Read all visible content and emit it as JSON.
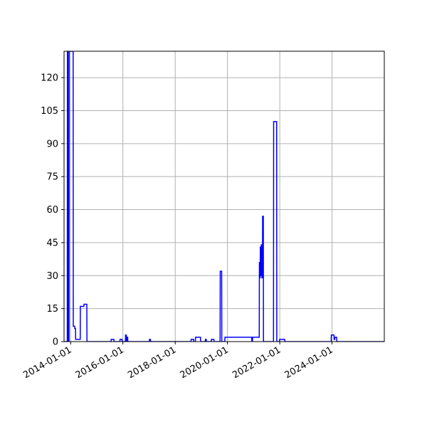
{
  "chart_data": {
    "type": "line",
    "title": "",
    "xlabel": "",
    "ylabel": "",
    "grid": true,
    "line_color": "#0000ff",
    "grid_color": "#b0b0b0",
    "x_type": "date",
    "xlim": [
      "2013-10-01",
      "2025-12-31"
    ],
    "ylim": [
      0,
      132
    ],
    "xticks": [
      "2014-01-01",
      "2016-01-01",
      "2018-01-01",
      "2020-01-01",
      "2022-01-01",
      "2024-01-01"
    ],
    "yticks": [
      0,
      15,
      30,
      45,
      60,
      75,
      90,
      105,
      120
    ],
    "series": [
      {
        "points": [
          [
            "2013-10-01",
            0
          ],
          [
            "2013-11-15",
            0
          ],
          [
            "2013-11-17",
            132
          ],
          [
            "2013-11-25",
            132
          ],
          [
            "2013-11-27",
            0
          ],
          [
            "2013-12-10",
            0
          ],
          [
            "2013-12-12",
            132
          ],
          [
            "2014-02-05",
            132
          ],
          [
            "2014-02-07",
            7
          ],
          [
            "2014-02-25",
            7
          ],
          [
            "2014-02-27",
            6
          ],
          [
            "2014-03-10",
            6
          ],
          [
            "2014-03-12",
            1
          ],
          [
            "2014-05-15",
            1
          ],
          [
            "2014-05-17",
            16
          ],
          [
            "2014-07-05",
            16
          ],
          [
            "2014-07-07",
            17
          ],
          [
            "2014-08-15",
            17
          ],
          [
            "2014-08-17",
            0
          ],
          [
            "2015-07-20",
            0
          ],
          [
            "2015-07-22",
            1
          ],
          [
            "2015-08-28",
            1
          ],
          [
            "2015-08-30",
            0
          ],
          [
            "2015-11-20",
            0
          ],
          [
            "2015-11-22",
            1
          ],
          [
            "2015-12-20",
            1
          ],
          [
            "2015-12-22",
            0
          ],
          [
            "2016-02-05",
            0
          ],
          [
            "2016-02-07",
            3
          ],
          [
            "2016-02-18",
            3
          ],
          [
            "2016-02-20",
            0
          ],
          [
            "2016-02-28",
            0
          ],
          [
            "2016-03-01",
            2
          ],
          [
            "2016-03-08",
            2
          ],
          [
            "2016-03-10",
            0
          ],
          [
            "2017-01-05",
            0
          ],
          [
            "2017-01-07",
            1
          ],
          [
            "2017-01-20",
            1
          ],
          [
            "2017-01-22",
            0
          ],
          [
            "2018-08-10",
            0
          ],
          [
            "2018-08-12",
            1
          ],
          [
            "2018-09-15",
            1
          ],
          [
            "2018-09-17",
            0
          ],
          [
            "2018-10-10",
            0
          ],
          [
            "2018-10-12",
            2
          ],
          [
            "2018-12-20",
            2
          ],
          [
            "2018-12-22",
            0
          ],
          [
            "2019-02-25",
            0
          ],
          [
            "2019-02-27",
            1
          ],
          [
            "2019-03-10",
            1
          ],
          [
            "2019-03-12",
            0
          ],
          [
            "2019-05-20",
            0
          ],
          [
            "2019-05-22",
            1
          ],
          [
            "2019-06-25",
            1
          ],
          [
            "2019-06-27",
            0
          ],
          [
            "2019-09-20",
            0
          ],
          [
            "2019-09-22",
            32
          ],
          [
            "2019-10-12",
            32
          ],
          [
            "2019-10-14",
            0
          ],
          [
            "2019-11-25",
            0
          ],
          [
            "2019-11-27",
            2
          ],
          [
            "2020-12-05",
            2
          ],
          [
            "2020-12-07",
            0
          ],
          [
            "2020-12-15",
            0
          ],
          [
            "2020-12-17",
            2
          ],
          [
            "2021-03-20",
            2
          ],
          [
            "2021-03-22",
            36
          ],
          [
            "2021-03-28",
            36
          ],
          [
            "2021-03-30",
            29
          ],
          [
            "2021-04-02",
            29
          ],
          [
            "2021-04-04",
            43
          ],
          [
            "2021-04-10",
            43
          ],
          [
            "2021-04-12",
            30
          ],
          [
            "2021-04-16",
            30
          ],
          [
            "2021-04-18",
            44
          ],
          [
            "2021-04-25",
            44
          ],
          [
            "2021-04-27",
            29
          ],
          [
            "2021-05-04",
            29
          ],
          [
            "2021-05-06",
            57
          ],
          [
            "2021-05-16",
            57
          ],
          [
            "2021-05-18",
            0
          ],
          [
            "2021-10-05",
            0
          ],
          [
            "2021-10-07",
            100
          ],
          [
            "2021-11-18",
            100
          ],
          [
            "2021-11-20",
            0
          ],
          [
            "2021-12-28",
            0
          ],
          [
            "2021-12-30",
            1
          ],
          [
            "2022-03-10",
            1
          ],
          [
            "2022-03-12",
            0
          ],
          [
            "2023-12-20",
            0
          ],
          [
            "2023-12-22",
            3
          ],
          [
            "2024-01-28",
            3
          ],
          [
            "2024-01-30",
            1
          ],
          [
            "2024-02-08",
            1
          ],
          [
            "2024-02-10",
            2
          ],
          [
            "2024-03-05",
            2
          ],
          [
            "2024-03-07",
            0
          ],
          [
            "2025-12-31",
            0
          ]
        ]
      }
    ]
  }
}
